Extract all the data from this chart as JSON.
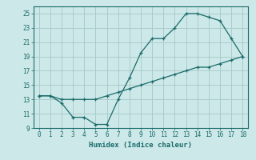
{
  "xlabel": "Humidex (Indice chaleur)",
  "bg_color": "#cde8e8",
  "grid_color": "#aacccc",
  "line_color": "#1a6b6b",
  "line1_x": [
    0,
    1,
    2,
    3,
    4,
    5,
    6,
    7,
    8,
    9,
    10,
    11,
    12,
    13,
    14,
    15,
    16,
    17,
    18
  ],
  "line1_y": [
    13.5,
    13.5,
    12.5,
    10.5,
    10.5,
    9.5,
    9.5,
    13.0,
    16.0,
    19.5,
    21.5,
    21.5,
    23.0,
    25.0,
    25.0,
    24.5,
    24.0,
    21.5,
    19.0
  ],
  "line2_x": [
    0,
    1,
    2,
    3,
    4,
    5,
    6,
    7,
    8,
    9,
    10,
    11,
    12,
    13,
    14,
    15,
    16,
    17,
    18
  ],
  "line2_y": [
    13.5,
    13.5,
    13.0,
    13.0,
    13.0,
    13.0,
    13.5,
    14.0,
    14.5,
    15.0,
    15.5,
    16.0,
    16.5,
    17.0,
    17.5,
    17.5,
    18.0,
    18.5,
    19.0
  ],
  "xlim": [
    -0.5,
    18.5
  ],
  "ylim": [
    9,
    26
  ],
  "yticks": [
    9,
    11,
    13,
    15,
    17,
    19,
    21,
    23,
    25
  ],
  "xticks": [
    0,
    1,
    2,
    3,
    4,
    5,
    6,
    7,
    8,
    9,
    10,
    11,
    12,
    13,
    14,
    15,
    16,
    17,
    18
  ]
}
